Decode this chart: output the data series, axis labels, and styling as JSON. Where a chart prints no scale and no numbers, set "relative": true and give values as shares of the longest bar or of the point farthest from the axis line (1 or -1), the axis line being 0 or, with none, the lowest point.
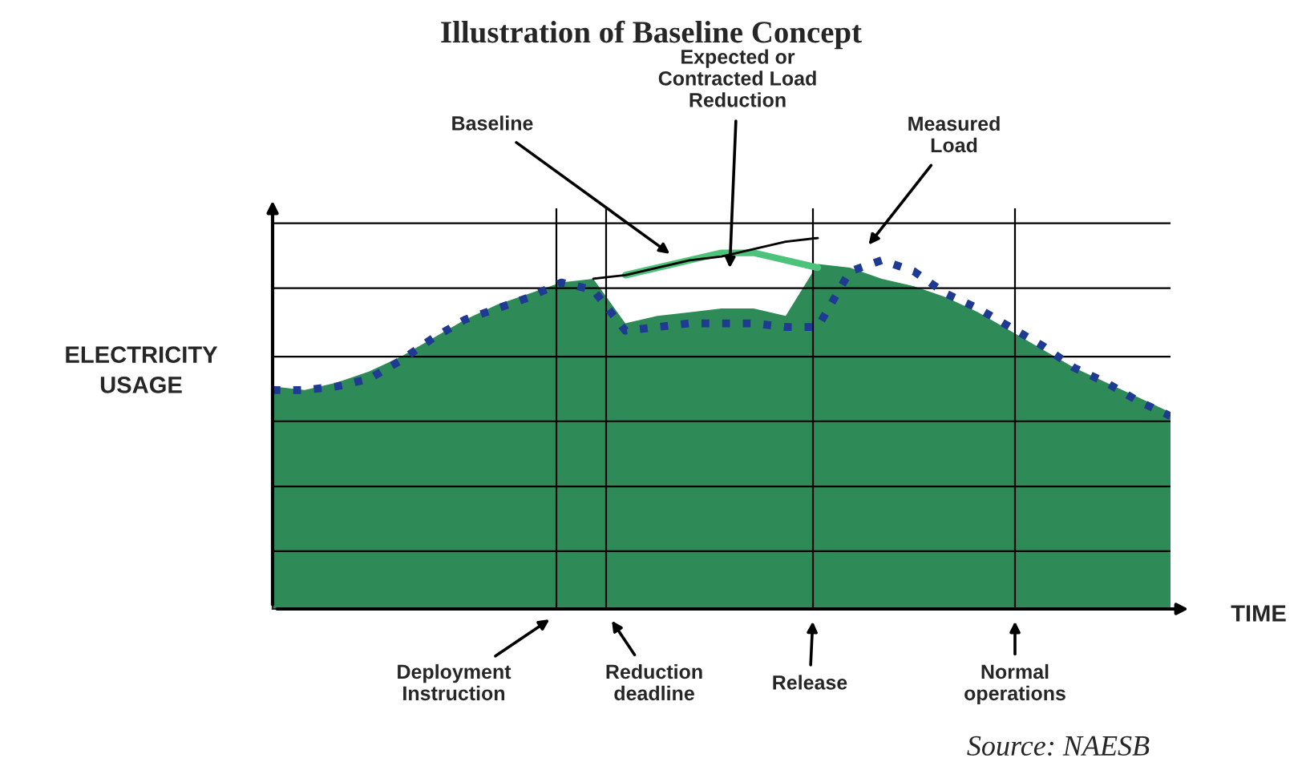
{
  "chart_data": {
    "type": "area",
    "title": "Illustration of Baseline Concept",
    "xlabel": "TIME",
    "ylabel": "ELECTRICITY\nUSAGE",
    "relative": true,
    "grid": true,
    "categories": [
      null,
      null,
      null,
      null,
      null,
      null,
      null,
      null,
      null,
      null,
      null,
      null,
      null,
      null,
      null,
      null,
      null,
      null,
      null,
      null,
      null,
      null,
      null,
      null,
      null,
      null,
      null,
      null,
      null
    ],
    "series": [
      {
        "color": "#2e8b57",
        "values": [
          0.6,
          0.59,
          0.61,
          0.64,
          0.68,
          0.73,
          0.78,
          0.82,
          0.85,
          0.88,
          0.89,
          0.77,
          0.79,
          0.8,
          0.81,
          0.81,
          0.79,
          0.93,
          0.92,
          0.89,
          0.87,
          0.84,
          0.8,
          0.75,
          0.7,
          0.65,
          0.61,
          0.57,
          0.53
        ]
      },
      {
        "type": "line",
        "color": "#000000",
        "line_style": "solid",
        "values": [
          null,
          null,
          null,
          null,
          null,
          null,
          null,
          null,
          null,
          null,
          0.89,
          0.9,
          0.92,
          0.94,
          0.95,
          0.97,
          0.99,
          1.0,
          null,
          null,
          null,
          null,
          null,
          null,
          null,
          null,
          null,
          null,
          null
        ]
      },
      {
        "type": "line",
        "color": "#4cc27a",
        "line_style": "solid",
        "values": [
          null,
          null,
          null,
          null,
          null,
          null,
          null,
          null,
          null,
          null,
          null,
          0.9,
          0.92,
          0.94,
          0.96,
          0.96,
          0.94,
          0.92,
          null,
          null,
          null,
          null,
          null,
          null,
          null,
          null,
          null,
          null,
          null
        ]
      },
      {
        "type": "line",
        "color": "#1f3a93",
        "line_style": "dotted",
        "values": [
          0.59,
          0.59,
          0.6,
          0.62,
          0.67,
          0.73,
          0.78,
          0.81,
          0.84,
          0.88,
          0.86,
          0.75,
          0.76,
          0.77,
          0.77,
          0.77,
          0.76,
          0.76,
          0.91,
          0.94,
          0.91,
          0.85,
          0.81,
          0.76,
          0.71,
          0.65,
          0.61,
          0.56,
          0.52
        ]
      }
    ],
    "annotations": [
      "Baseline",
      "Expected or\nContracted Load\nReduction",
      "Measured\nLoad",
      "Deployment\nInstruction",
      "Reduction\ndeadline",
      "Release",
      "Normal\noperations",
      "Source: NAESB"
    ]
  }
}
